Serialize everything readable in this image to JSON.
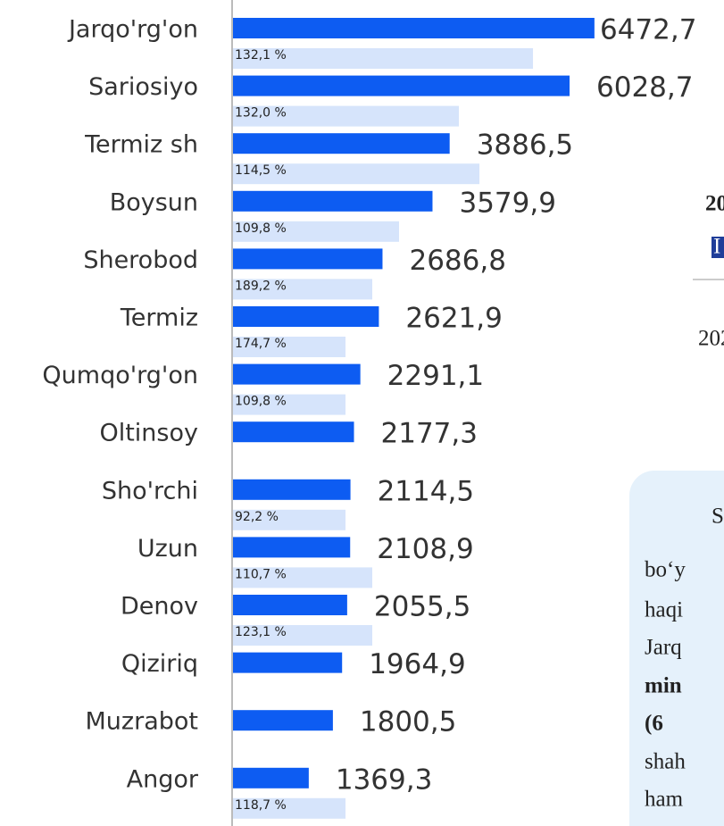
{
  "chart_data": {
    "type": "bar",
    "orientation": "horizontal",
    "categories": [
      "Jarqo'rg'on",
      "Sariosiyo",
      "Termiz sh",
      "Boysun",
      "Sherobod",
      "Termiz",
      "Qumqo'rg'on",
      "Oltinsoy",
      "Sho'rchi",
      "Uzun",
      "Denov",
      "Qiziriq",
      "Muzrabot",
      "Angor"
    ],
    "series": [
      {
        "color": "#0d5cf2",
        "values": [
          6472.7,
          6028.7,
          3886.5,
          3579.9,
          2686.8,
          2621.9,
          2291.1,
          2177.3,
          2114.5,
          2108.9,
          2055.5,
          1964.9,
          1800.5,
          1369.3
        ],
        "value_labels": [
          "6472,7",
          "6028,7",
          "3886,5",
          "3579,9",
          "2686,8",
          "2621,9",
          "2291,1",
          "2177,3",
          "2114,5",
          "2108,9",
          "2055,5",
          "1964,9",
          "1800,5",
          "1369,3"
        ]
      },
      {
        "color": "#d6e4fb",
        "values": [
          5375,
          4051,
          4418,
          2982,
          2504,
          2026,
          2026,
          null,
          2026,
          2504,
          2504,
          null,
          null,
          2026
        ],
        "value_labels": [
          "132,1 %",
          "132,0 %",
          "114,5 %",
          "109,8 %",
          "189,2 %",
          "174,7 %",
          "109,8 %",
          null,
          "92,2 %",
          "110,7 %",
          "123,1 %",
          null,
          null,
          "118,7 %"
        ]
      }
    ],
    "xlim": [
      0,
      6475
    ]
  },
  "fragments": {
    "heading": "20",
    "legend_mark": "I",
    "footer": "202",
    "note": [
      "S",
      "bo‘y",
      "haqi",
      "Jarq",
      "min",
      "(6",
      "shah",
      "ham"
    ]
  }
}
